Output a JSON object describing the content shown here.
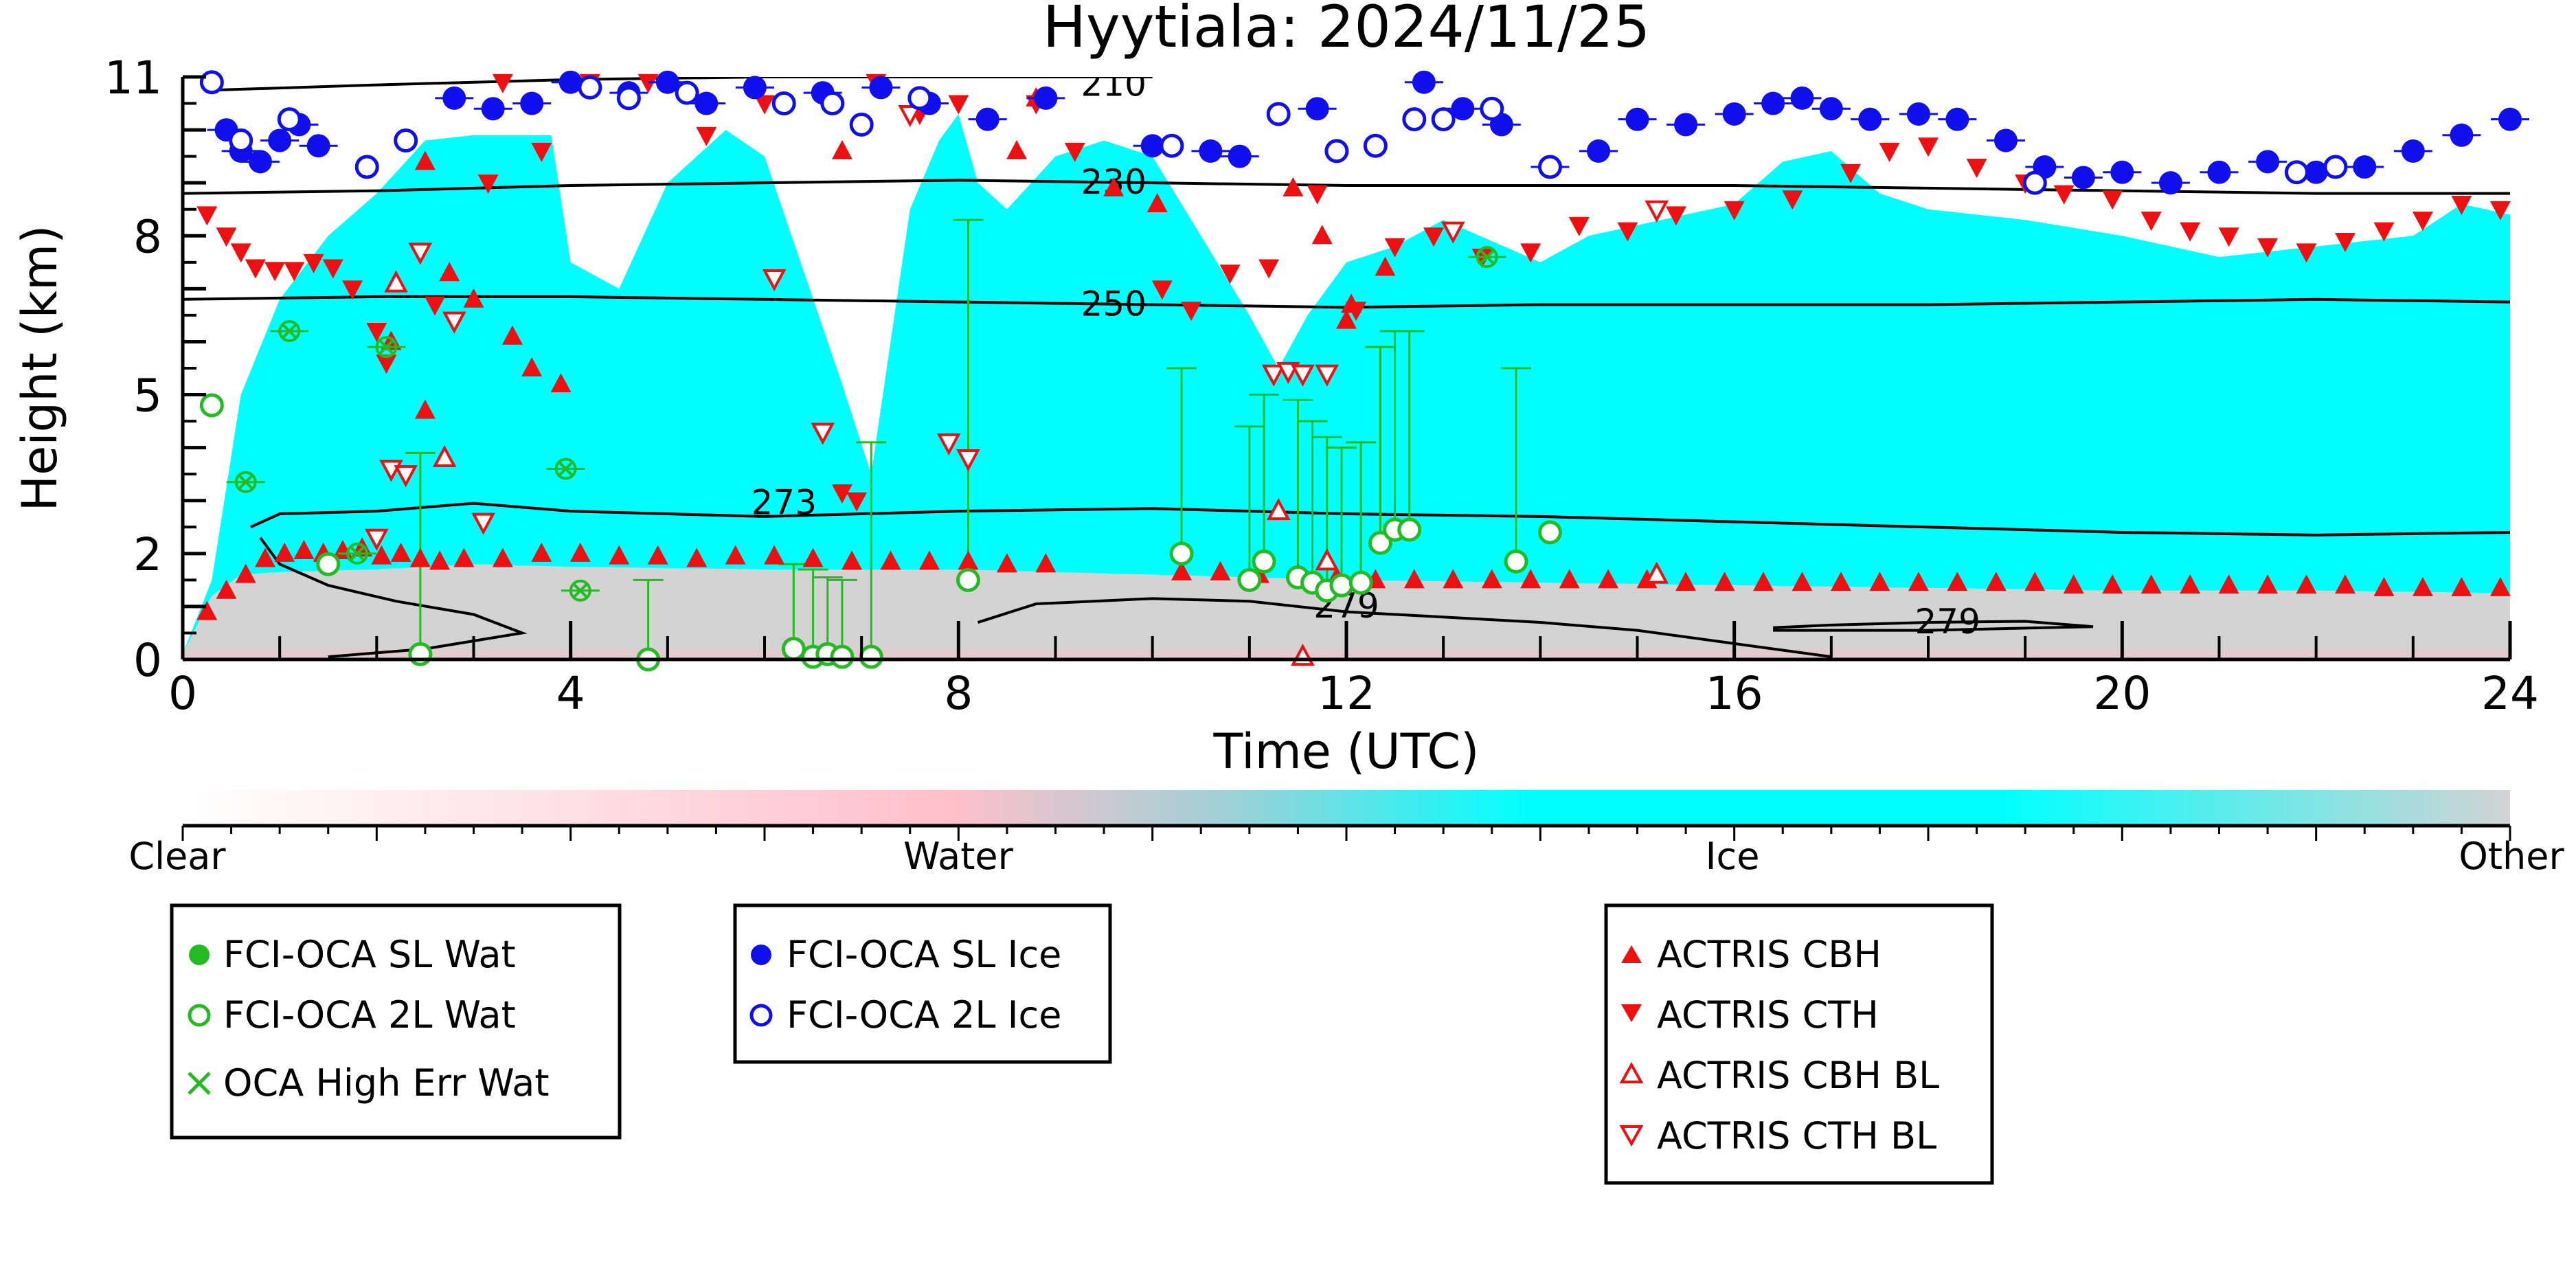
{
  "chart_data": {
    "type": "scatter",
    "title": "Hyytiala: 2024/11/25",
    "xlabel": "Time (UTC)",
    "ylabel": "Height (km)",
    "xlim": [
      0,
      24
    ],
    "ylim": [
      0,
      11
    ],
    "xticks": [
      0,
      4,
      8,
      12,
      16,
      20,
      24
    ],
    "yticks": [
      0,
      2,
      5,
      8,
      11
    ],
    "ytick_labels": [
      "0",
      "2",
      "5",
      "8",
      "11"
    ],
    "grid": false,
    "background_phase_colorbar": {
      "labels": [
        "Clear",
        "Water",
        "Ice",
        "Other"
      ],
      "colors": [
        "#ffffff",
        "#ffc0cb",
        "#00ffff",
        "#d3d3d3"
      ]
    },
    "isotherms": [
      {
        "label": "210",
        "points": [
          [
            0.3,
            10.75
          ],
          [
            2,
            10.85
          ],
          [
            4,
            10.95
          ],
          [
            6,
            11.0
          ],
          [
            8,
            11.0
          ],
          [
            10,
            11.0
          ]
        ],
        "label_at": [
          9.6,
          10.85
        ]
      },
      {
        "label": "230",
        "points": [
          [
            0,
            8.8
          ],
          [
            2,
            8.85
          ],
          [
            4,
            8.95
          ],
          [
            6,
            9.0
          ],
          [
            8,
            9.05
          ],
          [
            10,
            9.0
          ],
          [
            12,
            8.95
          ],
          [
            14,
            8.95
          ],
          [
            16,
            8.95
          ],
          [
            18,
            8.9
          ],
          [
            20,
            8.85
          ],
          [
            22,
            8.8
          ],
          [
            24,
            8.8
          ]
        ],
        "label_at": [
          9.6,
          9.0
        ]
      },
      {
        "label": "250",
        "points": [
          [
            0,
            6.8
          ],
          [
            2,
            6.85
          ],
          [
            4,
            6.85
          ],
          [
            6,
            6.8
          ],
          [
            8,
            6.75
          ],
          [
            10,
            6.7
          ],
          [
            12,
            6.65
          ],
          [
            14,
            6.7
          ],
          [
            16,
            6.7
          ],
          [
            18,
            6.7
          ],
          [
            20,
            6.75
          ],
          [
            22,
            6.8
          ],
          [
            24,
            6.75
          ]
        ],
        "label_at": [
          9.6,
          6.7
        ]
      },
      {
        "label": "273",
        "points": [
          [
            0.7,
            2.5
          ],
          [
            1,
            2.75
          ],
          [
            2,
            2.8
          ],
          [
            3,
            2.95
          ],
          [
            4,
            2.8
          ],
          [
            6,
            2.7
          ],
          [
            8,
            2.8
          ],
          [
            10,
            2.85
          ],
          [
            12,
            2.75
          ],
          [
            14,
            2.7
          ],
          [
            16,
            2.6
          ],
          [
            18,
            2.5
          ],
          [
            20,
            2.4
          ],
          [
            22,
            2.35
          ],
          [
            24,
            2.4
          ]
        ],
        "label_at": [
          6.2,
          2.95
        ]
      },
      {
        "label": "279",
        "points": [
          [
            0.8,
            2.3
          ],
          [
            1,
            1.8
          ],
          [
            1.5,
            1.4
          ],
          [
            2.2,
            1.1
          ],
          [
            3,
            0.85
          ],
          [
            3.5,
            0.5
          ],
          [
            2.5,
            0.2
          ],
          [
            1.5,
            0.05
          ]
        ],
        "label_at": [
          12,
          1.0
        ]
      },
      {
        "label": "279",
        "points": [
          [
            8.2,
            0.7
          ],
          [
            8.8,
            1.05
          ],
          [
            10,
            1.15
          ],
          [
            11,
            1.1
          ],
          [
            12,
            0.9
          ],
          [
            14,
            0.7
          ],
          [
            15,
            0.55
          ],
          [
            16,
            0.3
          ],
          [
            17,
            0.05
          ]
        ],
        "label_at": null
      },
      {
        "label": "279",
        "points": [
          [
            16.4,
            0.6
          ],
          [
            17,
            0.65
          ],
          [
            18,
            0.7
          ],
          [
            19,
            0.72
          ],
          [
            19.7,
            0.62
          ],
          [
            18,
            0.55
          ],
          [
            16.4,
            0.55
          ]
        ],
        "label_at": [
          18.2,
          0.7
        ]
      }
    ],
    "cloud_top_profile": [
      [
        0,
        0.1
      ],
      [
        0.3,
        1.5
      ],
      [
        0.6,
        5.0
      ],
      [
        1,
        6.8
      ],
      [
        1.5,
        8.0
      ],
      [
        2,
        8.8
      ],
      [
        2.5,
        9.8
      ],
      [
        3,
        9.9
      ],
      [
        3.8,
        9.9
      ],
      [
        4,
        7.5
      ],
      [
        4.5,
        7.0
      ],
      [
        5,
        9.0
      ],
      [
        5.6,
        10.0
      ],
      [
        6,
        9.5
      ],
      [
        6.8,
        5.2
      ],
      [
        7.1,
        3.5
      ],
      [
        7.5,
        8.5
      ],
      [
        7.8,
        9.8
      ],
      [
        8,
        10.3
      ],
      [
        8.2,
        9.0
      ],
      [
        8.5,
        8.5
      ],
      [
        9,
        9.5
      ],
      [
        9.5,
        9.8
      ],
      [
        10,
        9.5
      ],
      [
        10.5,
        8.0
      ],
      [
        11,
        6.5
      ],
      [
        11.3,
        5.5
      ],
      [
        11.6,
        6.5
      ],
      [
        12,
        7.5
      ],
      [
        12.5,
        7.8
      ],
      [
        13,
        8.3
      ],
      [
        14,
        7.5
      ],
      [
        14.5,
        8.0
      ],
      [
        15,
        8.2
      ],
      [
        16,
        8.6
      ],
      [
        16.5,
        9.4
      ],
      [
        17,
        9.6
      ],
      [
        17.5,
        8.8
      ],
      [
        18,
        8.5
      ],
      [
        19,
        8.3
      ],
      [
        20,
        8.0
      ],
      [
        21,
        7.6
      ],
      [
        22,
        7.8
      ],
      [
        23,
        8.0
      ],
      [
        23.5,
        8.6
      ],
      [
        24,
        8.4
      ]
    ],
    "cloud_base_profile": [
      [
        0,
        0.1
      ],
      [
        0.3,
        1.2
      ],
      [
        0.6,
        1.6
      ],
      [
        1,
        1.65
      ],
      [
        2,
        1.7
      ],
      [
        3,
        1.8
      ],
      [
        4,
        1.75
      ],
      [
        6,
        1.7
      ],
      [
        8,
        1.7
      ],
      [
        10,
        1.6
      ],
      [
        12,
        1.5
      ],
      [
        14,
        1.45
      ],
      [
        16,
        1.4
      ],
      [
        18,
        1.35
      ],
      [
        20,
        1.3
      ],
      [
        22,
        1.3
      ],
      [
        24,
        1.25
      ]
    ],
    "series": [
      {
        "name": "FCI-OCA SL Wat",
        "marker": "circle-filled",
        "color": "#22bb22",
        "x": [],
        "y": []
      },
      {
        "name": "FCI-OCA 2L Wat",
        "marker": "circle-open",
        "color": "#22bb22",
        "x": [
          0.3,
          1.5,
          2.45,
          6.3,
          6.5,
          6.65,
          6.8,
          7.1,
          4.8,
          8.1,
          10.3,
          11.0,
          11.15,
          11.5,
          11.65,
          11.8,
          11.95,
          12.15,
          12.35,
          12.5,
          12.65,
          13.75,
          14.1
        ],
        "y": [
          4.8,
          1.8,
          0.1,
          0.2,
          0.05,
          0.1,
          0.05,
          0.05,
          0.0,
          1.5,
          2.0,
          1.5,
          1.85,
          1.55,
          1.45,
          1.3,
          1.4,
          1.45,
          2.2,
          2.45,
          2.45,
          1.85,
          2.4
        ],
        "err_up": [
          0,
          0,
          3.9,
          1.8,
          1.7,
          1.55,
          1.5,
          4.1,
          1.5,
          8.3,
          5.5,
          4.4,
          5.0,
          4.9,
          4.5,
          4.2,
          4.0,
          4.1,
          5.9,
          6.2,
          6.2,
          5.5,
          0
        ]
      },
      {
        "name": "OCA High Err Wat",
        "marker": "x-in-circle",
        "color": "#22bb22",
        "x": [
          0.65,
          1.1,
          1.8,
          2.1,
          3.95,
          4.1,
          13.45
        ],
        "y": [
          3.35,
          6.2,
          2.0,
          5.9,
          3.6,
          1.3,
          7.6
        ]
      },
      {
        "name": "FCI-OCA SL Ice",
        "marker": "circle-filled",
        "color": "#1010ee",
        "x": [
          0.45,
          0.6,
          0.8,
          1.0,
          1.2,
          1.4,
          2.8,
          3.2,
          3.6,
          4.0,
          4.6,
          5.0,
          5.4,
          5.9,
          6.6,
          7.2,
          7.7,
          8.3,
          8.9,
          10.0,
          10.6,
          10.9,
          11.7,
          12.8,
          13.2,
          13.6,
          14.1,
          14.6,
          15.0,
          15.5,
          16.0,
          16.4,
          16.7,
          17.0,
          17.4,
          17.9,
          18.3,
          18.8,
          19.2,
          19.6,
          20.0,
          20.5,
          21.0,
          21.5,
          22.0,
          22.5,
          23.0,
          23.5,
          24.0
        ],
        "y": [
          10.0,
          9.6,
          9.4,
          9.8,
          10.1,
          9.7,
          10.6,
          10.4,
          10.5,
          10.9,
          10.7,
          10.9,
          10.5,
          10.8,
          10.7,
          10.8,
          10.5,
          10.2,
          10.6,
          9.7,
          9.6,
          9.5,
          10.4,
          10.9,
          10.4,
          10.1,
          9.3,
          9.6,
          10.2,
          10.1,
          10.3,
          10.5,
          10.6,
          10.4,
          10.2,
          10.3,
          10.2,
          9.8,
          9.3,
          9.1,
          9.2,
          9.0,
          9.2,
          9.4,
          9.2,
          9.3,
          9.6,
          9.9,
          10.2
        ]
      },
      {
        "name": "FCI-OCA 2L Ice",
        "marker": "circle-open",
        "color": "#1010ee",
        "x": [
          0.3,
          0.6,
          1.1,
          1.9,
          2.3,
          4.2,
          4.6,
          5.2,
          6.2,
          6.7,
          7.0,
          7.6,
          10.2,
          11.3,
          11.9,
          12.3,
          12.7,
          13.0,
          13.5,
          14.1,
          19.1,
          21.8,
          22.2
        ],
        "y": [
          10.9,
          9.8,
          10.2,
          9.3,
          9.8,
          10.8,
          10.6,
          10.7,
          10.5,
          10.5,
          10.1,
          10.6,
          9.7,
          10.3,
          9.6,
          9.7,
          10.2,
          10.2,
          10.4,
          9.3,
          9.0,
          9.2,
          9.3
        ]
      },
      {
        "name": "ACTRIS CBH",
        "marker": "triangle-up-filled",
        "color": "#ee1010",
        "x": [
          0.25,
          0.45,
          0.65,
          0.85,
          1.05,
          1.25,
          1.45,
          1.65,
          1.85,
          2.05,
          2.25,
          2.45,
          2.65,
          2.9,
          3.3,
          3.7,
          4.1,
          4.5,
          4.9,
          5.3,
          5.7,
          6.1,
          6.5,
          6.9,
          7.3,
          7.7,
          8.1,
          8.5,
          8.9,
          10.3,
          10.7,
          11.1,
          11.5,
          11.9,
          12.3,
          12.7,
          13.1,
          13.5,
          13.9,
          14.3,
          14.7,
          15.1,
          15.5,
          15.9,
          16.3,
          16.7,
          17.1,
          17.5,
          17.9,
          18.3,
          18.7,
          19.1,
          19.5,
          19.9,
          20.3,
          20.7,
          21.1,
          21.5,
          21.9,
          22.3,
          22.7,
          23.1,
          23.5,
          23.9,
          2.15,
          2.5,
          2.75,
          3.0,
          3.4,
          3.6,
          3.9,
          2.5,
          6.8,
          8.6,
          8.8,
          9.6,
          10.05,
          11.45,
          11.75,
          12.0,
          12.05,
          12.4
        ],
        "y": [
          0.9,
          1.3,
          1.6,
          1.9,
          2.0,
          2.05,
          2.0,
          2.05,
          2.1,
          1.95,
          2.0,
          1.9,
          1.85,
          1.9,
          1.9,
          2.0,
          2.0,
          1.95,
          1.95,
          1.9,
          1.95,
          1.95,
          1.9,
          1.85,
          1.85,
          1.85,
          1.85,
          1.8,
          1.8,
          1.65,
          1.65,
          1.6,
          1.6,
          1.55,
          1.5,
          1.5,
          1.5,
          1.5,
          1.5,
          1.5,
          1.5,
          1.5,
          1.45,
          1.45,
          1.45,
          1.45,
          1.45,
          1.45,
          1.45,
          1.45,
          1.45,
          1.45,
          1.4,
          1.4,
          1.4,
          1.4,
          1.4,
          1.4,
          1.4,
          1.4,
          1.35,
          1.35,
          1.35,
          1.35,
          6.0,
          4.7,
          7.3,
          6.8,
          6.1,
          5.5,
          5.2,
          9.4,
          9.6,
          9.6,
          10.6,
          8.9,
          8.6,
          8.9,
          8.0,
          6.4,
          6.7,
          7.4
        ],
        "x_extra": [],
        "y_extra": []
      },
      {
        "name": "ACTRIS CTH",
        "marker": "triangle-down-filled",
        "color": "#ee1010",
        "x": [
          0.25,
          0.45,
          0.6,
          0.75,
          0.95,
          1.15,
          1.35,
          1.55,
          1.75,
          2.0,
          2.1,
          2.6,
          3.15,
          3.3,
          3.7,
          4.2,
          4.8,
          5.4,
          6.0,
          6.8,
          6.95,
          7.15,
          7.6,
          8.0,
          8.8,
          9.2,
          10.1,
          10.4,
          10.8,
          11.2,
          11.7,
          12.1,
          12.5,
          12.9,
          13.4,
          13.9,
          14.4,
          14.9,
          15.4,
          16.0,
          16.6,
          17.2,
          17.6,
          18.0,
          18.5,
          19.0,
          19.4,
          19.9,
          20.3,
          20.7,
          21.1,
          21.5,
          21.9,
          22.3,
          22.7,
          23.1,
          23.5,
          23.9
        ],
        "y": [
          8.4,
          8.0,
          7.7,
          7.4,
          7.35,
          7.35,
          7.5,
          7.4,
          7.0,
          6.2,
          5.6,
          6.7,
          9.0,
          10.9,
          9.6,
          10.9,
          10.9,
          9.9,
          10.5,
          3.15,
          3.0,
          10.9,
          10.3,
          10.5,
          10.5,
          9.6,
          7.0,
          6.6,
          7.3,
          7.4,
          8.8,
          6.6,
          7.8,
          8.0,
          7.6,
          7.7,
          8.2,
          8.1,
          8.4,
          8.5,
          8.7,
          9.2,
          9.6,
          9.7,
          9.3,
          9.0,
          8.8,
          8.7,
          8.3,
          8.1,
          8.0,
          7.8,
          7.7,
          7.9,
          8.1,
          8.3,
          8.6,
          8.5
        ],
        "x_extra": [],
        "y_extra": []
      },
      {
        "name": "ACTRIS CBH BL",
        "marker": "triangle-up-open",
        "color": "#ee1010",
        "x": [
          2.2,
          2.7,
          11.3,
          11.8,
          11.55,
          15.2
        ],
        "y": [
          7.1,
          3.8,
          2.8,
          1.85,
          0.05,
          1.6
        ]
      },
      {
        "name": "ACTRIS CTH BL",
        "marker": "triangle-down-open",
        "color": "#ee1010",
        "x": [
          2.45,
          2.8,
          3.1,
          6.1,
          6.6,
          7.5,
          7.9,
          8.1,
          11.25,
          11.4,
          11.55,
          11.8,
          13.1,
          15.2
        ],
        "y": [
          7.7,
          6.4,
          2.6,
          7.2,
          4.3,
          10.3,
          4.1,
          3.8,
          5.4,
          5.45,
          5.4,
          5.4,
          8.1,
          8.5
        ],
        "x_extra": [
          2.15,
          2.3,
          2.0
        ],
        "y_extra": [
          3.6,
          3.5,
          2.3
        ]
      }
    ],
    "legend": {
      "placement": "below",
      "groups": [
        [
          "FCI-OCA SL Wat",
          "FCI-OCA 2L Wat",
          "OCA High Err Wat"
        ],
        [
          "FCI-OCA SL Ice",
          "FCI-OCA 2L Ice"
        ],
        [
          "ACTRIS CBH",
          "ACTRIS CTH",
          "ACTRIS CBH BL",
          "ACTRIS CTH BL"
        ]
      ]
    }
  }
}
